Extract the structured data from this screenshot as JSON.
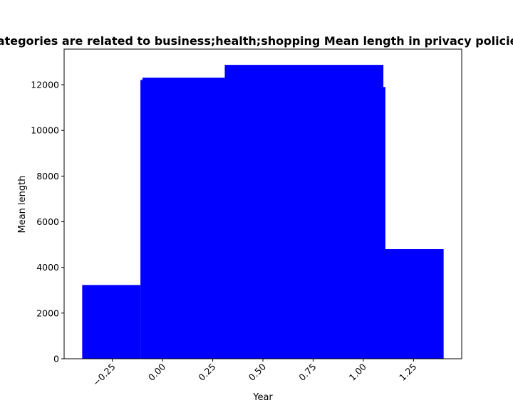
{
  "chart_data": {
    "type": "bar",
    "title": "Categories are related to business;health;shopping Mean length in privacy policies",
    "xlabel": "Year",
    "ylabel": "Mean length",
    "bars": [
      {
        "x_from": -0.4,
        "x_to": -0.11,
        "value": 3230
      },
      {
        "x_from": -0.11,
        "x_to": 0.31,
        "value": 12210
      },
      {
        "x_from": -0.1,
        "x_to": 0.31,
        "value": 12310
      },
      {
        "x_from": 0.3,
        "x_to": 1.11,
        "value": 11900
      },
      {
        "x_from": 0.31,
        "x_to": 1.1,
        "value": 12870
      },
      {
        "x_from": 1.1,
        "x_to": 1.4,
        "value": 4800
      }
    ],
    "xlim": [
      -0.49,
      1.49
    ],
    "ylim": [
      0,
      13560
    ],
    "x_ticks": [
      -0.25,
      0.0,
      0.25,
      0.5,
      0.75,
      1.0,
      1.25
    ],
    "x_tick_labels": [
      "−0.25",
      "0.00",
      "0.25",
      "0.50",
      "0.75",
      "1.00",
      "1.25"
    ],
    "y_ticks": [
      0,
      2000,
      4000,
      6000,
      8000,
      10000,
      12000
    ],
    "y_tick_labels": [
      "0",
      "2000",
      "4000",
      "6000",
      "8000",
      "10000",
      "12000"
    ],
    "bar_color": "#0000ff",
    "grid": false,
    "legend": "none"
  }
}
